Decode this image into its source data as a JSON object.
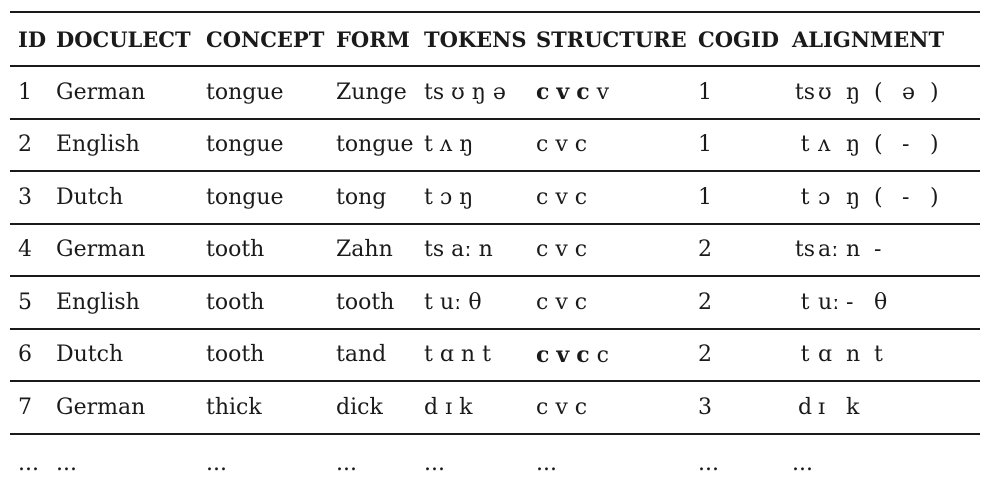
{
  "table": {
    "headers": [
      "ID",
      "DOCULECT",
      "CONCEPT",
      "FORM",
      "TOKENS",
      "STRUCTURE",
      "COGID",
      "ALIGNMENT"
    ],
    "rows": [
      {
        "id": "1",
        "doculect": "German",
        "concept": "tongue",
        "form": "Zunge",
        "tokens": "ts ʊ ŋ ə",
        "structure": [
          {
            "t": "c",
            "bold": true
          },
          {
            "t": "v",
            "bold": true
          },
          {
            "t": "c",
            "bold": true
          },
          {
            "t": "v",
            "bold": false
          }
        ],
        "cogid": "1",
        "alignment": [
          "ts",
          "ʊ",
          "ŋ",
          "(",
          "ə",
          ")"
        ]
      },
      {
        "id": "2",
        "doculect": "English",
        "concept": "tongue",
        "form": "tongue",
        "tokens": "t ʌ ŋ",
        "structure": [
          {
            "t": "c",
            "bold": false
          },
          {
            "t": "v",
            "bold": false
          },
          {
            "t": "c",
            "bold": false
          }
        ],
        "cogid": "1",
        "alignment": [
          "t",
          "ʌ",
          "ŋ",
          "(",
          "-",
          ")"
        ]
      },
      {
        "id": "3",
        "doculect": "Dutch",
        "concept": "tongue",
        "form": "tong",
        "tokens": "t ɔ ŋ",
        "structure": [
          {
            "t": "c",
            "bold": false
          },
          {
            "t": "v",
            "bold": false
          },
          {
            "t": "c",
            "bold": false
          }
        ],
        "cogid": "1",
        "alignment": [
          "t",
          "ɔ",
          "ŋ",
          "(",
          "-",
          ")"
        ]
      },
      {
        "id": "4",
        "doculect": "German",
        "concept": "tooth",
        "form": "Zahn",
        "tokens": "ts aː n",
        "structure": [
          {
            "t": "c",
            "bold": false
          },
          {
            "t": "v",
            "bold": false
          },
          {
            "t": "c",
            "bold": false
          }
        ],
        "cogid": "2",
        "alignment": [
          "ts",
          "aː",
          "n",
          "-"
        ]
      },
      {
        "id": "5",
        "doculect": "English",
        "concept": "tooth",
        "form": "tooth",
        "tokens": "t uː θ",
        "structure": [
          {
            "t": "c",
            "bold": false
          },
          {
            "t": "v",
            "bold": false
          },
          {
            "t": "c",
            "bold": false
          }
        ],
        "cogid": "2",
        "alignment": [
          "t",
          "uː",
          "-",
          "θ"
        ]
      },
      {
        "id": "6",
        "doculect": "Dutch",
        "concept": "tooth",
        "form": "tand",
        "tokens": "t ɑ n t",
        "structure": [
          {
            "t": "c",
            "bold": true
          },
          {
            "t": "v",
            "bold": true
          },
          {
            "t": "c",
            "bold": true
          },
          {
            "t": "c",
            "bold": false
          }
        ],
        "cogid": "2",
        "alignment": [
          "t",
          "ɑ",
          "n",
          "t"
        ]
      },
      {
        "id": "7",
        "doculect": "German",
        "concept": "thick",
        "form": "dick",
        "tokens": "d ɪ k",
        "structure": [
          {
            "t": "c",
            "bold": false
          },
          {
            "t": "v",
            "bold": false
          },
          {
            "t": "c",
            "bold": false
          }
        ],
        "cogid": "3",
        "alignment": [
          "d",
          "ɪ",
          "k"
        ]
      }
    ],
    "ellipsis": [
      "...",
      "...",
      "...",
      "...",
      "...",
      "...",
      "...",
      "..."
    ]
  }
}
